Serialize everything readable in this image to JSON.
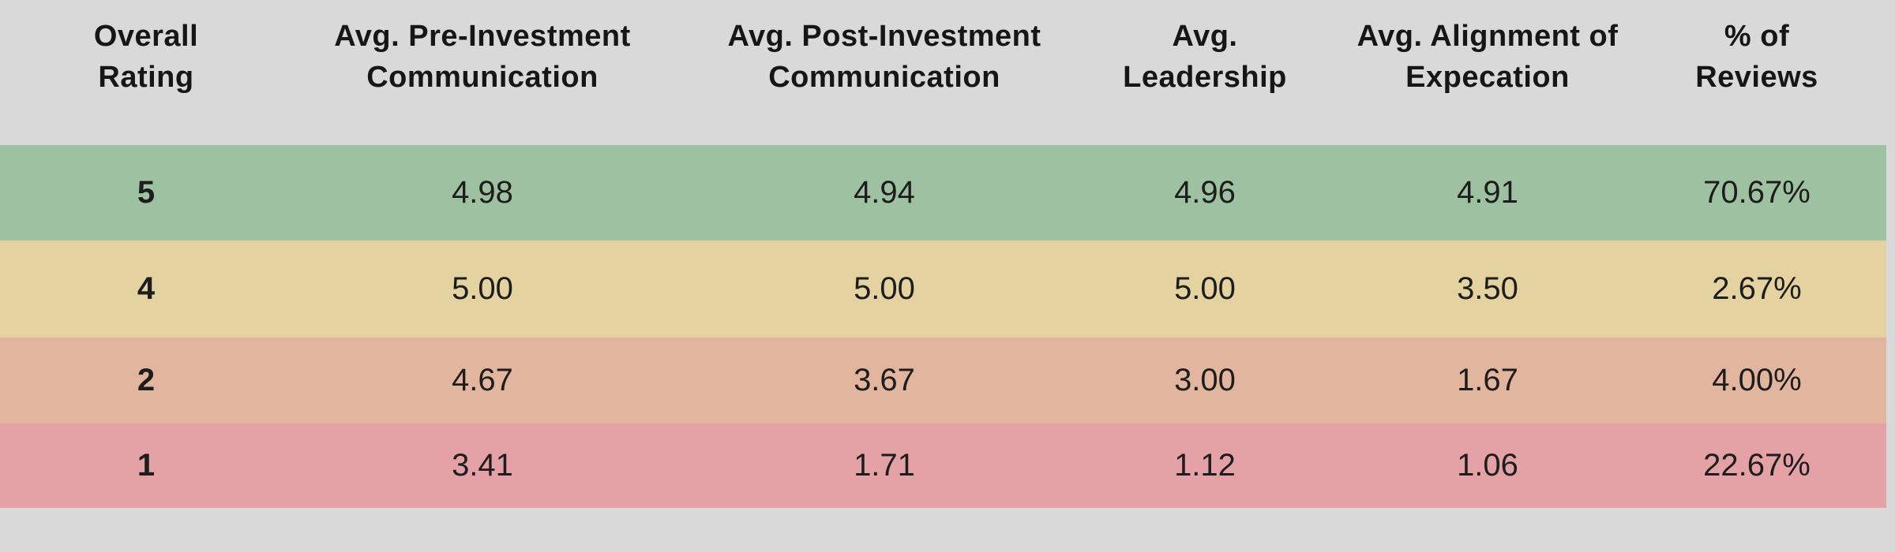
{
  "colors": {
    "background_gray": "#d9d9d9",
    "row_green": "#9ec2a1",
    "row_tan": "#e4d2a0",
    "row_salmon": "#e2b59e",
    "row_pink": "#e4a2a7",
    "header_text": "#161616",
    "value_text": "#1d1d1d"
  },
  "table": {
    "columns": [
      {
        "id": "overall-rating",
        "line1": "Overall",
        "line2": "Rating"
      },
      {
        "id": "pre-investment-communication",
        "line1": "Avg. Pre-Investment",
        "line2": "Communication"
      },
      {
        "id": "post-investment-communication",
        "line1": "Avg. Post-Investment",
        "line2": "Communication"
      },
      {
        "id": "leadership",
        "line1": "Avg.",
        "line2": "Leadership"
      },
      {
        "id": "alignment-of-expectation",
        "line1": "Avg. Alignment of",
        "line2": "Expecation"
      },
      {
        "id": "pct-of-reviews",
        "line1": "% of",
        "line2": "Reviews"
      }
    ],
    "rows": [
      {
        "color": "#9ec2a1",
        "cells": [
          "5",
          "4.98",
          "4.94",
          "4.96",
          "4.91",
          "70.67%"
        ]
      },
      {
        "color": "#e4d2a0",
        "cells": [
          "4",
          "5.00",
          "5.00",
          "5.00",
          "3.50",
          "2.67%"
        ]
      },
      {
        "color": "#e2b59e",
        "cells": [
          "2",
          "4.67",
          "3.67",
          "3.00",
          "1.67",
          "4.00%"
        ]
      },
      {
        "color": "#e4a2a7",
        "cells": [
          "1",
          "3.41",
          "1.71",
          "1.12",
          "1.06",
          "22.67%"
        ]
      }
    ]
  },
  "chart_data": {
    "type": "table",
    "columns": [
      "Overall Rating",
      "Avg. Pre-Investment Communication",
      "Avg. Post-Investment Communication",
      "Avg. Leadership",
      "Avg. Alignment of Expecation",
      "% of Reviews"
    ],
    "rows": [
      {
        "overall_rating": 5,
        "avg_pre_investment_communication": 4.98,
        "avg_post_investment_communication": 4.94,
        "avg_leadership": 4.96,
        "avg_alignment_of_expectation": 4.91,
        "pct_of_reviews": "70.67%"
      },
      {
        "overall_rating": 4,
        "avg_pre_investment_communication": 5.0,
        "avg_post_investment_communication": 5.0,
        "avg_leadership": 5.0,
        "avg_alignment_of_expectation": 3.5,
        "pct_of_reviews": "2.67%"
      },
      {
        "overall_rating": 2,
        "avg_pre_investment_communication": 4.67,
        "avg_post_investment_communication": 3.67,
        "avg_leadership": 3.0,
        "avg_alignment_of_expectation": 1.67,
        "pct_of_reviews": "4.00%"
      },
      {
        "overall_rating": 1,
        "avg_pre_investment_communication": 3.41,
        "avg_post_investment_communication": 1.71,
        "avg_leadership": 1.12,
        "avg_alignment_of_expectation": 1.06,
        "pct_of_reviews": "22.67%"
      }
    ],
    "row_colors": [
      "#9ec2a1",
      "#e4d2a0",
      "#e2b59e",
      "#e4a2a7"
    ],
    "layout": {
      "row_color_encodes": "overall rating, green (high) to red (low)",
      "grid": false,
      "legend": false
    }
  }
}
